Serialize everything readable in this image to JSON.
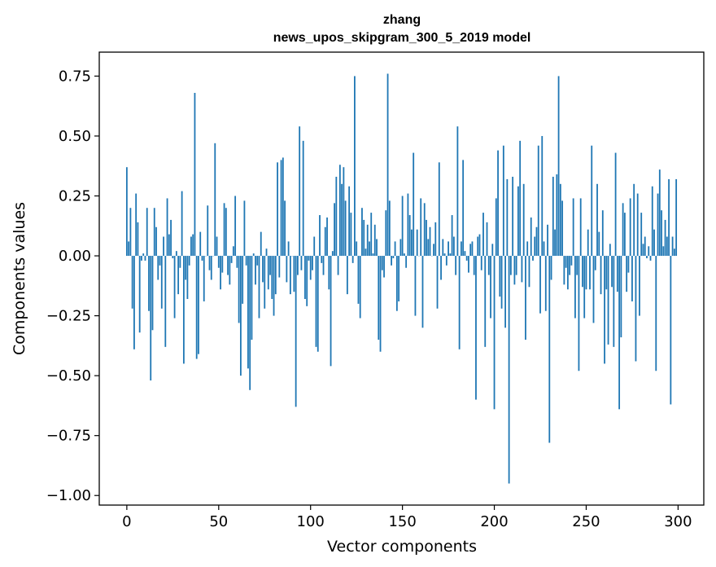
{
  "chart_data": {
    "type": "bar",
    "title_lines": [
      "zhang",
      "news_upos_skipgram_300_5_2019 model"
    ],
    "xlabel": "Vector components",
    "ylabel": "Components values",
    "xlim": [
      -15,
      314
    ],
    "ylim": [
      -1.04,
      0.85
    ],
    "xticks": [
      0,
      50,
      100,
      150,
      200,
      250,
      300
    ],
    "yticks": [
      0.75,
      0.5,
      0.25,
      0.0,
      -0.25,
      -0.5,
      -0.75,
      -1.0
    ],
    "xtick_labels": [
      "0",
      "50",
      "100",
      "150",
      "200",
      "250",
      "300"
    ],
    "ytick_labels": [
      "0.75",
      "0.50",
      "0.25",
      "0.00",
      "−0.25",
      "−0.50",
      "−0.75",
      "−1.00"
    ],
    "grid": false,
    "bar_color": "#1f77b4",
    "x": [
      0,
      1,
      2,
      3,
      4,
      5,
      6,
      7,
      8,
      9,
      10,
      11,
      12,
      13,
      14,
      15,
      16,
      17,
      18,
      19,
      20,
      21,
      22,
      23,
      24,
      25,
      26,
      27,
      28,
      29,
      30,
      31,
      32,
      33,
      34,
      35,
      36,
      37,
      38,
      39,
      40,
      41,
      42,
      43,
      44,
      45,
      46,
      47,
      48,
      49,
      50,
      51,
      52,
      53,
      54,
      55,
      56,
      57,
      58,
      59,
      60,
      61,
      62,
      63,
      64,
      65,
      66,
      67,
      68,
      69,
      70,
      71,
      72,
      73,
      74,
      75,
      76,
      77,
      78,
      79,
      80,
      81,
      82,
      83,
      84,
      85,
      86,
      87,
      88,
      89,
      90,
      91,
      92,
      93,
      94,
      95,
      96,
      97,
      98,
      99,
      100,
      101,
      102,
      103,
      104,
      105,
      106,
      107,
      108,
      109,
      110,
      111,
      112,
      113,
      114,
      115,
      116,
      117,
      118,
      119,
      120,
      121,
      122,
      123,
      124,
      125,
      126,
      127,
      128,
      129,
      130,
      131,
      132,
      133,
      134,
      135,
      136,
      137,
      138,
      139,
      140,
      141,
      142,
      143,
      144,
      145,
      146,
      147,
      148,
      149,
      150,
      151,
      152,
      153,
      154,
      155,
      156,
      157,
      158,
      159,
      160,
      161,
      162,
      163,
      164,
      165,
      166,
      167,
      168,
      169,
      170,
      171,
      172,
      173,
      174,
      175,
      176,
      177,
      178,
      179,
      180,
      181,
      182,
      183,
      184,
      185,
      186,
      187,
      188,
      189,
      190,
      191,
      192,
      193,
      194,
      195,
      196,
      197,
      198,
      199,
      200,
      201,
      202,
      203,
      204,
      205,
      206,
      207,
      208,
      209,
      210,
      211,
      212,
      213,
      214,
      215,
      216,
      217,
      218,
      219,
      220,
      221,
      222,
      223,
      224,
      225,
      226,
      227,
      228,
      229,
      230,
      231,
      232,
      233,
      234,
      235,
      236,
      237,
      238,
      239,
      240,
      241,
      242,
      243,
      244,
      245,
      246,
      247,
      248,
      249,
      250,
      251,
      252,
      253,
      254,
      255,
      256,
      257,
      258,
      259,
      260,
      261,
      262,
      263,
      264,
      265,
      266,
      267,
      268,
      269,
      270,
      271,
      272,
      273,
      274,
      275,
      276,
      277,
      278,
      279,
      280,
      281,
      282,
      283,
      284,
      285,
      286,
      287,
      288,
      289,
      290,
      291,
      292,
      293,
      294,
      295,
      296,
      297,
      298,
      299
    ],
    "values": [
      0.37,
      0.06,
      0.2,
      -0.22,
      -0.39,
      0.26,
      0.14,
      -0.32,
      -0.02,
      0.01,
      -0.02,
      0.2,
      -0.23,
      -0.52,
      -0.31,
      0.2,
      0.12,
      -0.1,
      -0.04,
      -0.22,
      0.08,
      -0.38,
      0.24,
      0.09,
      0.15,
      -0.01,
      -0.26,
      0.02,
      -0.16,
      -0.05,
      0.27,
      -0.45,
      -0.1,
      -0.18,
      -0.04,
      0.08,
      0.09,
      0.68,
      -0.43,
      -0.41,
      0.1,
      -0.02,
      -0.19,
      0.0,
      0.21,
      -0.06,
      -0.1,
      0.0,
      0.47,
      0.08,
      -0.05,
      -0.14,
      -0.07,
      0.22,
      0.2,
      -0.08,
      -0.12,
      -0.03,
      0.04,
      0.25,
      -0.05,
      -0.28,
      -0.5,
      -0.2,
      0.23,
      -0.04,
      -0.47,
      -0.56,
      -0.35,
      0.01,
      -0.12,
      -0.04,
      -0.26,
      0.1,
      -0.11,
      -0.22,
      0.03,
      -0.14,
      -0.08,
      -0.18,
      -0.25,
      -0.16,
      0.39,
      -0.09,
      0.4,
      0.41,
      0.23,
      -0.11,
      0.06,
      -0.16,
      0.0,
      -0.15,
      -0.63,
      -0.08,
      0.54,
      -0.06,
      0.48,
      -0.18,
      -0.21,
      -0.02,
      -0.1,
      -0.06,
      0.08,
      -0.38,
      -0.4,
      0.17,
      -0.03,
      -0.08,
      0.12,
      0.16,
      -0.14,
      -0.46,
      0.02,
      0.22,
      0.33,
      -0.08,
      0.38,
      0.3,
      0.37,
      0.23,
      -0.16,
      0.29,
      0.18,
      -0.03,
      0.75,
      0.06,
      -0.2,
      -0.26,
      0.2,
      0.15,
      0.03,
      0.13,
      0.06,
      0.18,
      0.01,
      0.13,
      0.07,
      -0.35,
      -0.4,
      -0.06,
      -0.09,
      0.19,
      0.76,
      0.23,
      -0.04,
      -0.01,
      0.06,
      -0.23,
      -0.19,
      0.07,
      0.25,
      0.01,
      -0.05,
      0.26,
      0.17,
      0.11,
      0.43,
      -0.25,
      0.11,
      0.0,
      0.24,
      -0.3,
      0.22,
      0.15,
      0.07,
      0.12,
      0.0,
      0.05,
      0.14,
      -0.22,
      0.39,
      -0.1,
      0.07,
      0.01,
      -0.04,
      0.06,
      0.01,
      0.17,
      0.08,
      -0.08,
      0.54,
      -0.39,
      0.06,
      0.4,
      0.02,
      -0.02,
      -0.07,
      0.05,
      0.06,
      -0.08,
      -0.6,
      0.08,
      0.09,
      -0.06,
      0.18,
      -0.38,
      0.14,
      -0.08,
      -0.26,
      0.05,
      -0.64,
      0.24,
      0.44,
      -0.17,
      -0.22,
      0.46,
      -0.3,
      0.32,
      -0.95,
      -0.08,
      0.33,
      -0.12,
      -0.08,
      0.29,
      0.48,
      -0.11,
      0.3,
      -0.35,
      0.06,
      -0.13,
      0.16,
      -0.02,
      0.08,
      0.12,
      0.46,
      -0.24,
      0.5,
      0.06,
      -0.23,
      0.13,
      -0.78,
      -0.1,
      0.33,
      0.11,
      0.34,
      0.75,
      0.3,
      0.23,
      -0.12,
      -0.05,
      -0.14,
      -0.08,
      -0.04,
      0.24,
      -0.26,
      -0.08,
      -0.48,
      0.24,
      -0.13,
      -0.26,
      -0.14,
      0.11,
      -0.14,
      0.46,
      -0.28,
      -0.06,
      0.3,
      0.1,
      -0.16,
      0.19,
      -0.45,
      -0.14,
      -0.37,
      0.05,
      -0.13,
      -0.38,
      0.43,
      -0.15,
      -0.64,
      -0.34,
      0.22,
      0.18,
      -0.15,
      -0.07,
      0.24,
      -0.19,
      0.3,
      -0.44,
      0.26,
      -0.25,
      0.18,
      0.05,
      0.08,
      -0.01,
      0.04,
      -0.02,
      0.29,
      0.11,
      -0.48,
      0.26,
      0.36,
      0.19,
      0.04,
      0.15,
      0.08,
      0.32,
      -0.62,
      0.08,
      0.03,
      0.32
    ]
  }
}
